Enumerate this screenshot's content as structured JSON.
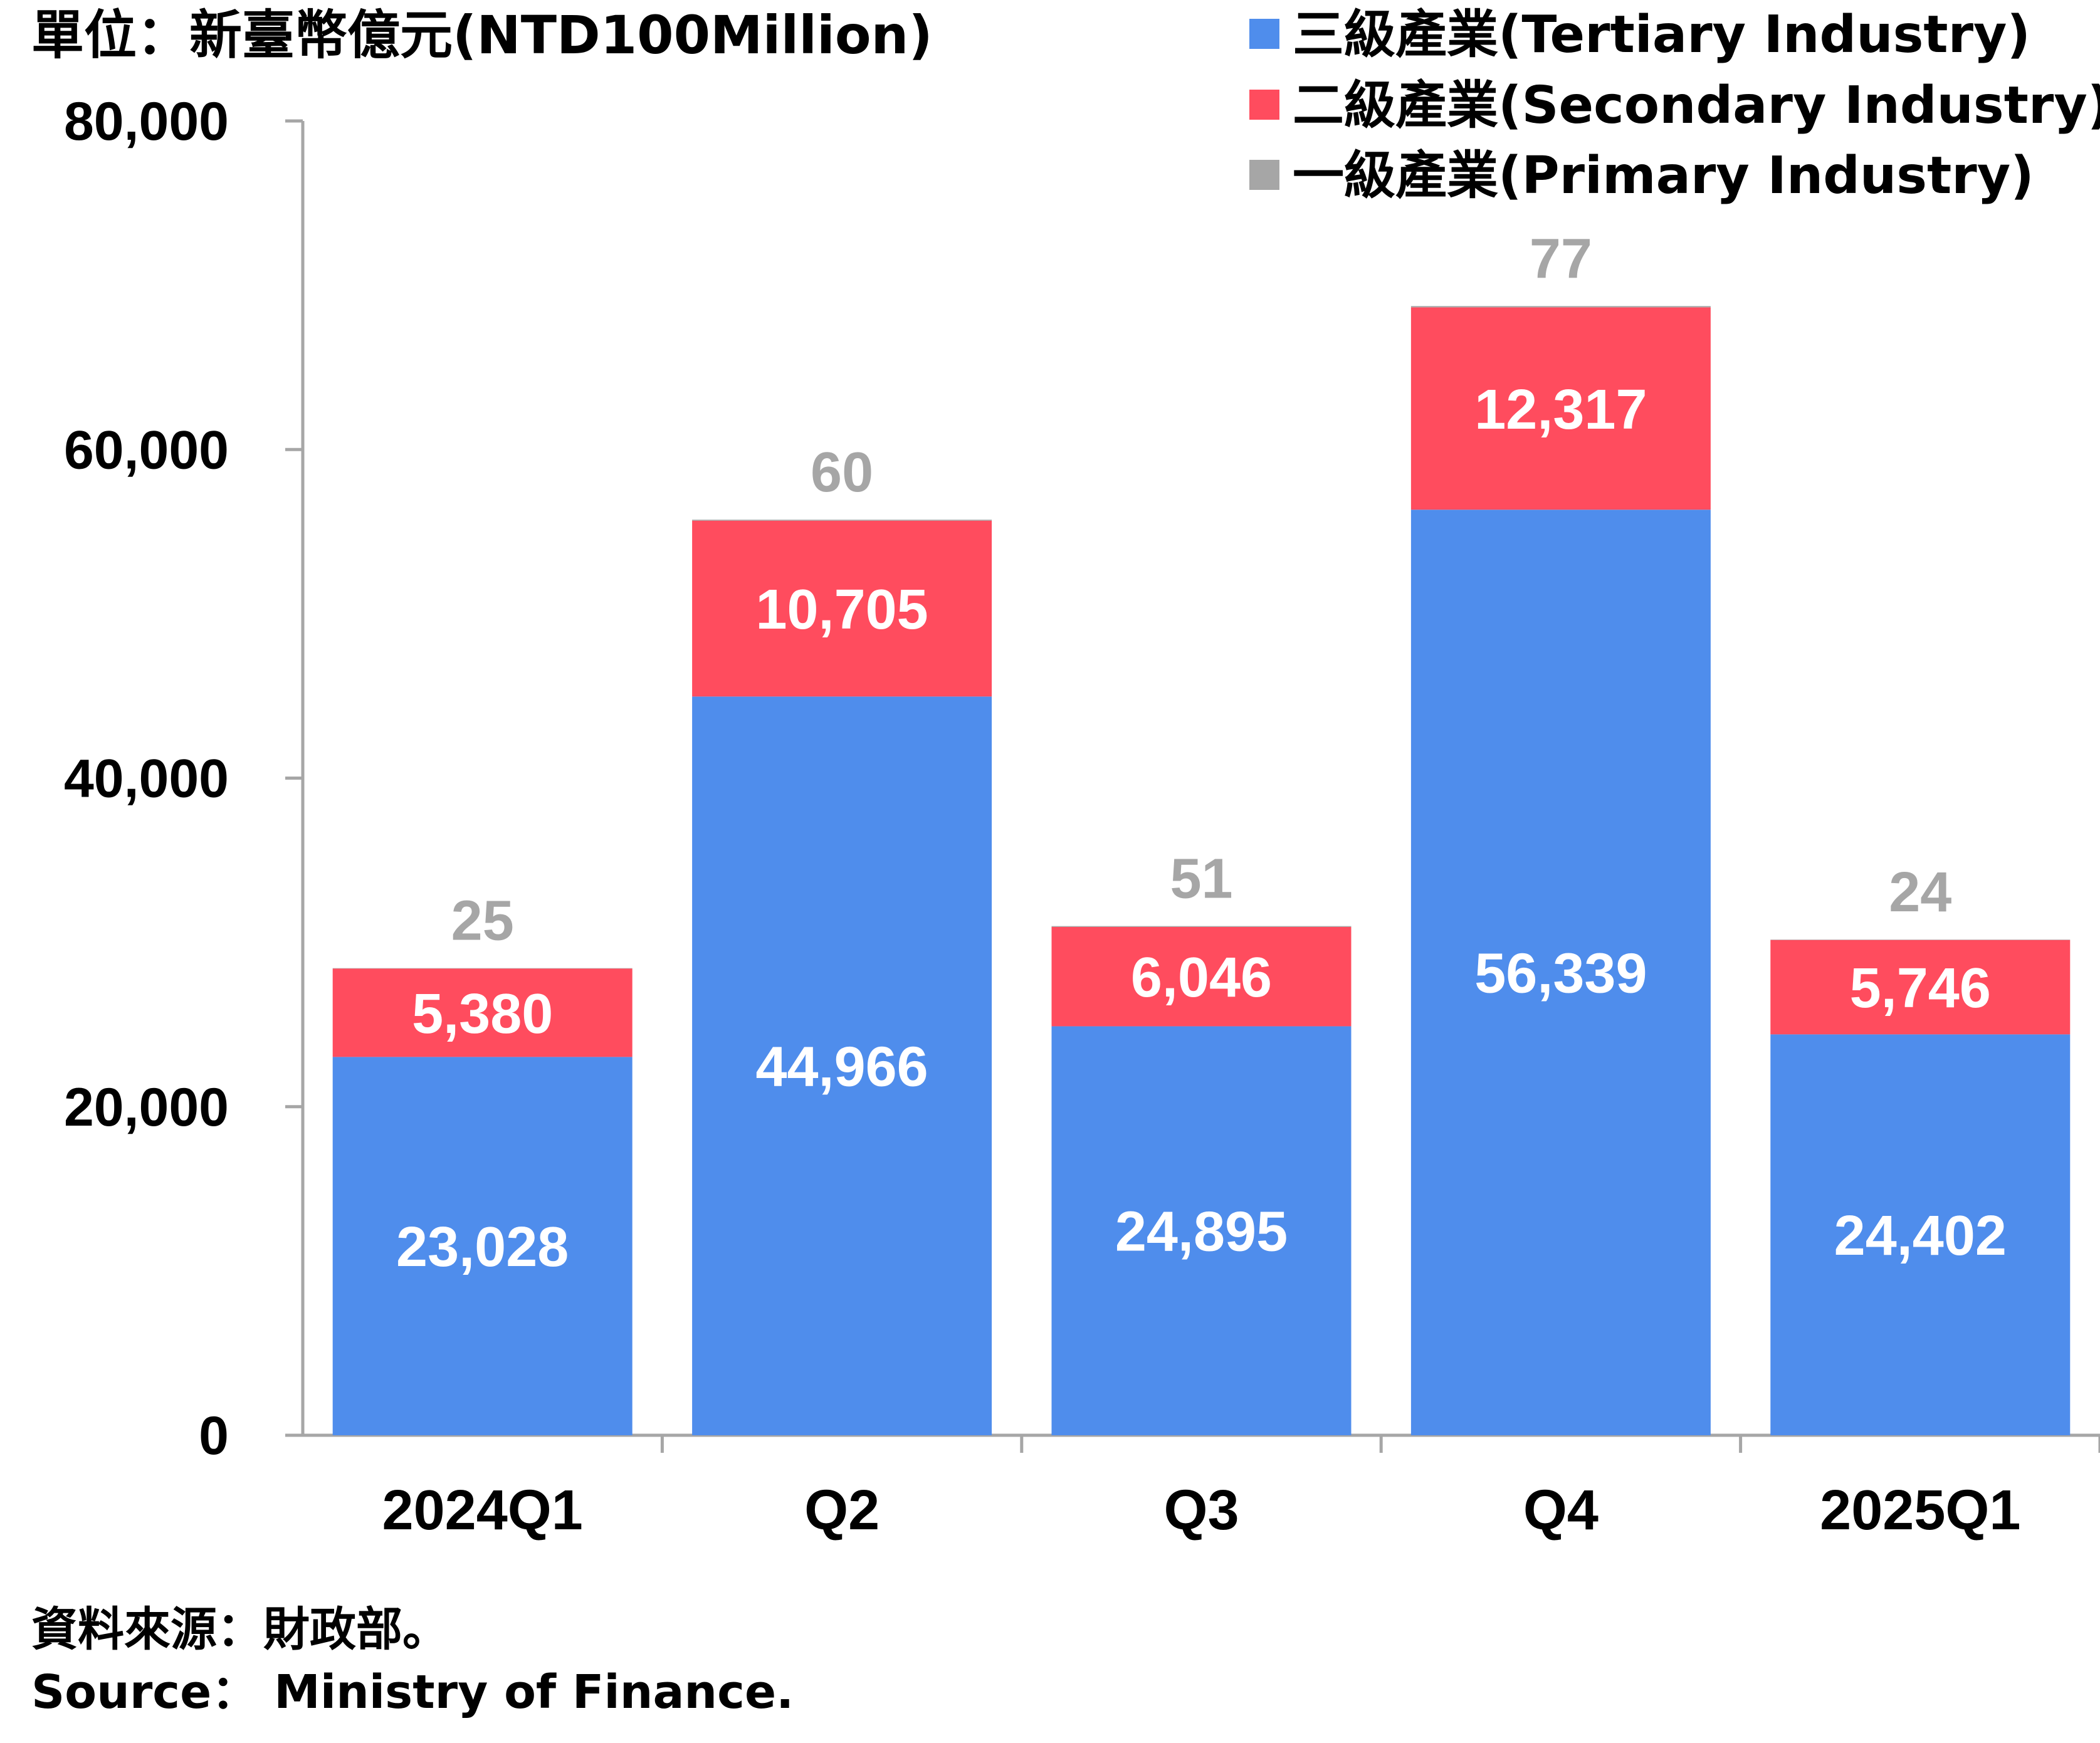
{
  "chart_data": {
    "type": "bar",
    "stacked": true,
    "unit_label": "單位：新臺幣億元(NTD100Million)",
    "categories": [
      "2024Q1",
      "Q2",
      "Q3",
      "Q4",
      "2025Q1"
    ],
    "series": [
      {
        "name": "三級產業(Tertiary Industry)",
        "color": "#4f8dec",
        "values": [
          23028,
          44966,
          24895,
          56339,
          24402
        ],
        "labels": [
          "23,028",
          "44,966",
          "24,895",
          "56,339",
          "24,402"
        ]
      },
      {
        "name": "二級產業(Secondary Industry)",
        "color": "#ff4c5e",
        "values": [
          5380,
          10705,
          6046,
          12317,
          5746
        ],
        "labels": [
          "5,380",
          "10,705",
          "6,046",
          "12,317",
          "5,746"
        ]
      },
      {
        "name": "一級產業(Primary Industry)",
        "color": "#a6a6a6",
        "values": [
          25,
          60,
          51,
          77,
          24
        ],
        "labels": [
          "25",
          "60",
          "51",
          "77",
          "24"
        ]
      }
    ],
    "ylim": [
      0,
      80000
    ],
    "yticks": [
      0,
      20000,
      40000,
      60000,
      80000
    ],
    "ytick_labels": [
      "0",
      "20,000",
      "40,000",
      "60,000",
      "80,000"
    ],
    "grid": false,
    "legend_position": "top-right"
  },
  "source": {
    "line_zh": "資料來源：財政部。",
    "line_en": "Source： Ministry of Finance."
  }
}
